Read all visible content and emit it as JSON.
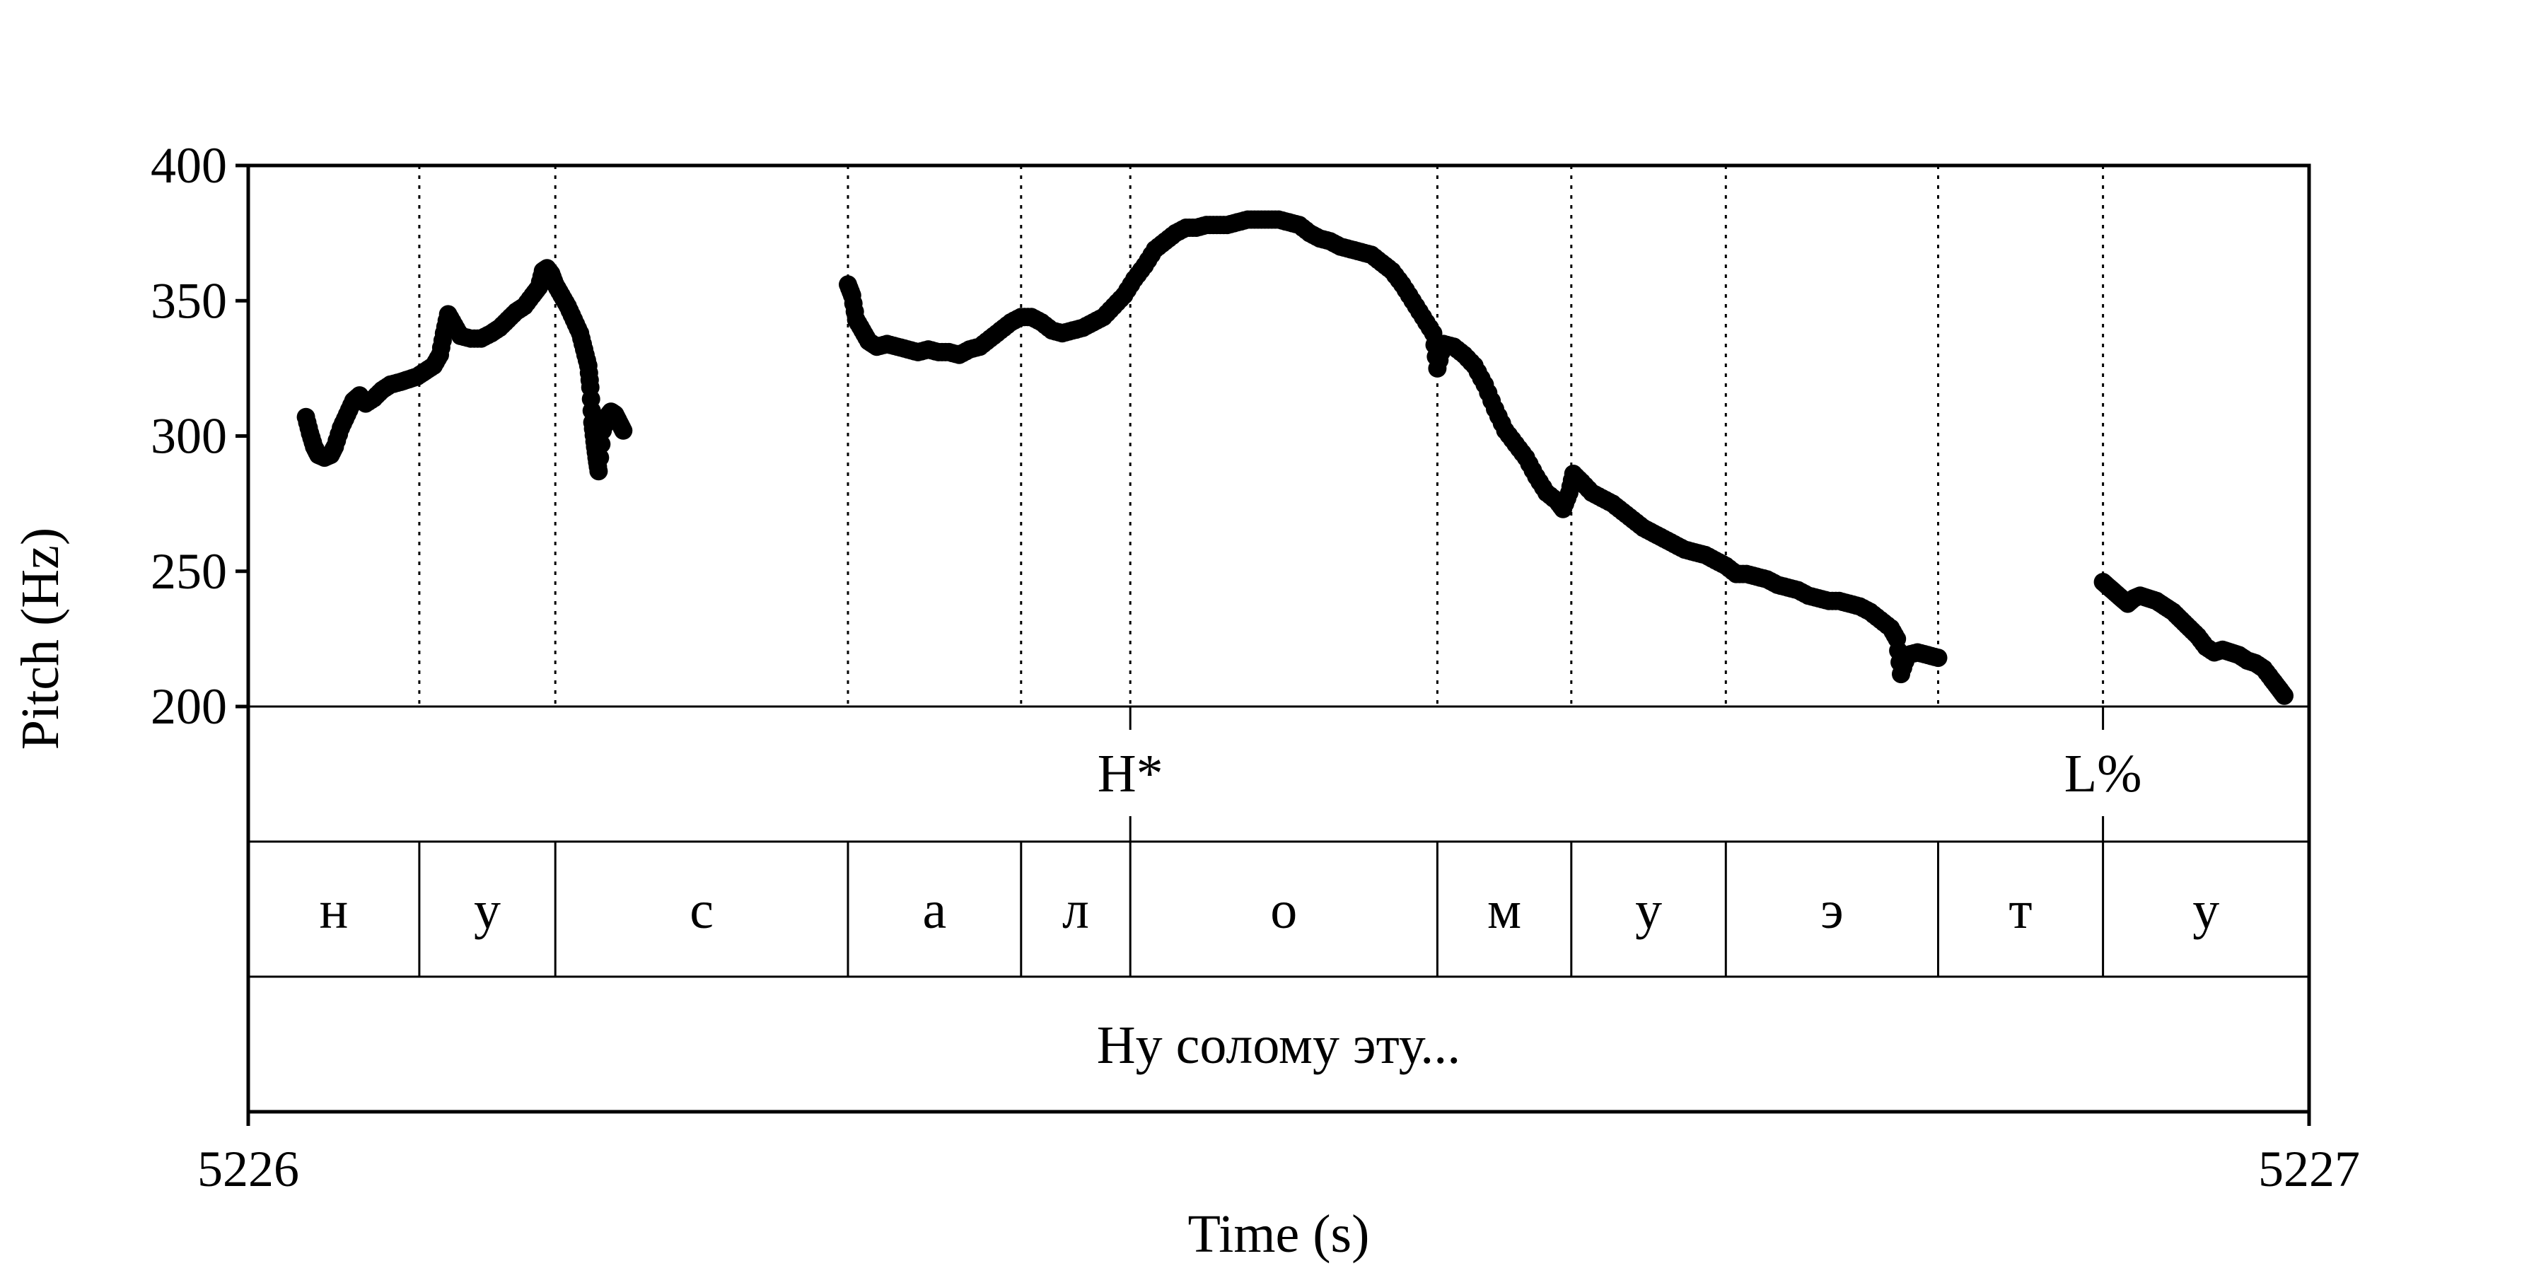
{
  "chart_data": {
    "type": "scatter",
    "title": "",
    "xlabel": "Time (s)",
    "ylabel": "Pitch (Hz)",
    "xlim": [
      5226,
      5227
    ],
    "ylim": [
      200,
      400
    ],
    "x_tick_labels": [
      "5226",
      "5227"
    ],
    "y_tick_labels": [
      "200",
      "250",
      "300",
      "350",
      "400"
    ],
    "grid": false,
    "tone_tier": {
      "points": [
        {
          "time": 5226.428,
          "label": "H*"
        },
        {
          "time": 5226.9,
          "label": "L%"
        }
      ]
    },
    "segment_tier": {
      "boundaries": [
        5226,
        5226.083,
        5226.149,
        5226.291,
        5226.375,
        5226.428,
        5226.577,
        5226.642,
        5226.717,
        5226.82,
        5226.9,
        5227
      ],
      "labels": [
        "н",
        "у",
        "с",
        "а",
        "л",
        "о",
        "м",
        "у",
        "э",
        "т",
        "у"
      ]
    },
    "word_tier": {
      "text": "Ну солому эту..."
    },
    "pitch_contours": [
      {
        "points": [
          [
            5226.028,
            307
          ],
          [
            5226.03,
            301
          ],
          [
            5226.032,
            296
          ],
          [
            5226.034,
            293
          ],
          [
            5226.037,
            292
          ],
          [
            5226.04,
            293
          ],
          [
            5226.042,
            296
          ],
          [
            5226.045,
            303
          ],
          [
            5226.048,
            308
          ],
          [
            5226.051,
            313
          ],
          [
            5226.054,
            315
          ],
          [
            5226.057,
            312
          ],
          [
            5226.061,
            314
          ],
          [
            5226.065,
            317
          ],
          [
            5226.069,
            319
          ],
          [
            5226.074,
            320
          ],
          [
            5226.078,
            321
          ],
          [
            5226.082,
            322
          ],
          [
            5226.086,
            324
          ],
          [
            5226.09,
            326
          ],
          [
            5226.093,
            330
          ],
          [
            5226.095,
            338
          ],
          [
            5226.097,
            345
          ],
          [
            5226.1,
            341
          ],
          [
            5226.103,
            337
          ],
          [
            5226.108,
            336
          ],
          [
            5226.113,
            336
          ],
          [
            5226.118,
            338
          ],
          [
            5226.122,
            340
          ],
          [
            5226.126,
            343
          ],
          [
            5226.13,
            346
          ],
          [
            5226.134,
            348
          ],
          [
            5226.138,
            352
          ],
          [
            5226.141,
            355
          ],
          [
            5226.143,
            361
          ],
          [
            5226.145,
            362
          ],
          [
            5226.147,
            360
          ],
          [
            5226.149,
            356
          ],
          [
            5226.152,
            352
          ],
          [
            5226.155,
            348
          ],
          [
            5226.158,
            343
          ],
          [
            5226.161,
            338
          ],
          [
            5226.163,
            332
          ],
          [
            5226.165,
            326
          ],
          [
            5226.166,
            318
          ],
          [
            5226.167,
            305
          ],
          [
            5226.168,
            298
          ],
          [
            5226.169,
            292
          ],
          [
            5226.17,
            287
          ],
          [
            5226.172,
            302
          ],
          [
            5226.174,
            307
          ],
          [
            5226.176,
            309
          ],
          [
            5226.178,
            308
          ],
          [
            5226.18,
            305
          ],
          [
            5226.182,
            302
          ]
        ]
      },
      {
        "points": [
          [
            5226.291,
            356
          ],
          [
            5226.293,
            352
          ],
          [
            5226.295,
            343
          ],
          [
            5226.298,
            339
          ],
          [
            5226.301,
            335
          ],
          [
            5226.305,
            333
          ],
          [
            5226.31,
            334
          ],
          [
            5226.315,
            333
          ],
          [
            5226.32,
            332
          ],
          [
            5226.325,
            331
          ],
          [
            5226.33,
            332
          ],
          [
            5226.335,
            331
          ],
          [
            5226.34,
            331
          ],
          [
            5226.345,
            330
          ],
          [
            5226.35,
            332
          ],
          [
            5226.355,
            333
          ],
          [
            5226.36,
            336
          ],
          [
            5226.365,
            339
          ],
          [
            5226.37,
            342
          ],
          [
            5226.375,
            344
          ],
          [
            5226.38,
            344
          ],
          [
            5226.385,
            342
          ],
          [
            5226.39,
            339
          ],
          [
            5226.395,
            338
          ],
          [
            5226.4,
            339
          ],
          [
            5226.405,
            340
          ],
          [
            5226.41,
            342
          ],
          [
            5226.415,
            344
          ],
          [
            5226.42,
            348
          ],
          [
            5226.425,
            352
          ],
          [
            5226.43,
            358
          ],
          [
            5226.435,
            363
          ],
          [
            5226.44,
            369
          ],
          [
            5226.445,
            372
          ],
          [
            5226.45,
            375
          ],
          [
            5226.455,
            377
          ],
          [
            5226.46,
            377
          ],
          [
            5226.465,
            378
          ],
          [
            5226.47,
            378
          ],
          [
            5226.475,
            378
          ],
          [
            5226.48,
            379
          ],
          [
            5226.485,
            380
          ],
          [
            5226.49,
            380
          ],
          [
            5226.495,
            380
          ],
          [
            5226.5,
            380
          ],
          [
            5226.505,
            379
          ],
          [
            5226.51,
            378
          ],
          [
            5226.515,
            375
          ],
          [
            5226.52,
            373
          ],
          [
            5226.525,
            372
          ],
          [
            5226.53,
            370
          ],
          [
            5226.535,
            369
          ],
          [
            5226.54,
            368
          ],
          [
            5226.545,
            367
          ],
          [
            5226.55,
            364
          ],
          [
            5226.555,
            361
          ],
          [
            5226.56,
            356
          ],
          [
            5226.565,
            350
          ],
          [
            5226.57,
            344
          ],
          [
            5226.575,
            338
          ],
          [
            5226.577,
            325
          ],
          [
            5226.58,
            334
          ],
          [
            5226.585,
            333
          ],
          [
            5226.59,
            330
          ],
          [
            5226.595,
            326
          ],
          [
            5226.6,
            319
          ],
          [
            5226.605,
            310
          ],
          [
            5226.61,
            302
          ],
          [
            5226.615,
            297
          ],
          [
            5226.62,
            292
          ],
          [
            5226.625,
            285
          ],
          [
            5226.63,
            279
          ],
          [
            5226.635,
            276
          ],
          [
            5226.638,
            273
          ],
          [
            5226.641,
            279
          ],
          [
            5226.643,
            286
          ],
          [
            5226.647,
            283
          ],
          [
            5226.652,
            279
          ],
          [
            5226.657,
            277
          ],
          [
            5226.662,
            275
          ],
          [
            5226.667,
            272
          ],
          [
            5226.672,
            269
          ],
          [
            5226.677,
            266
          ],
          [
            5226.682,
            264
          ],
          [
            5226.687,
            262
          ],
          [
            5226.692,
            260
          ],
          [
            5226.697,
            258
          ],
          [
            5226.702,
            257
          ],
          [
            5226.707,
            256
          ],
          [
            5226.712,
            254
          ],
          [
            5226.717,
            252
          ],
          [
            5226.722,
            249
          ],
          [
            5226.727,
            249
          ],
          [
            5226.732,
            248
          ],
          [
            5226.737,
            247
          ],
          [
            5226.742,
            245
          ],
          [
            5226.747,
            244
          ],
          [
            5226.752,
            243
          ],
          [
            5226.757,
            241
          ],
          [
            5226.762,
            240
          ],
          [
            5226.767,
            239
          ],
          [
            5226.772,
            239
          ],
          [
            5226.777,
            238
          ],
          [
            5226.782,
            237
          ],
          [
            5226.787,
            235
          ],
          [
            5226.792,
            232
          ],
          [
            5226.797,
            229
          ],
          [
            5226.8,
            225
          ],
          [
            5226.802,
            212
          ],
          [
            5226.805,
            219
          ],
          [
            5226.81,
            220
          ],
          [
            5226.815,
            219
          ],
          [
            5226.82,
            218
          ]
        ]
      },
      {
        "points": [
          [
            5226.9,
            246
          ],
          [
            5226.903,
            244
          ],
          [
            5226.906,
            242
          ],
          [
            5226.909,
            240
          ],
          [
            5226.912,
            238
          ],
          [
            5226.915,
            240
          ],
          [
            5226.918,
            241
          ],
          [
            5226.922,
            240
          ],
          [
            5226.926,
            239
          ],
          [
            5226.93,
            237
          ],
          [
            5226.934,
            235
          ],
          [
            5226.938,
            232
          ],
          [
            5226.942,
            229
          ],
          [
            5226.946,
            226
          ],
          [
            5226.95,
            222
          ],
          [
            5226.954,
            220
          ],
          [
            5226.958,
            221
          ],
          [
            5226.962,
            220
          ],
          [
            5226.966,
            219
          ],
          [
            5226.97,
            217
          ],
          [
            5226.974,
            216
          ],
          [
            5226.978,
            214
          ],
          [
            5226.982,
            210
          ],
          [
            5226.985,
            207
          ],
          [
            5226.988,
            204
          ]
        ]
      }
    ]
  }
}
